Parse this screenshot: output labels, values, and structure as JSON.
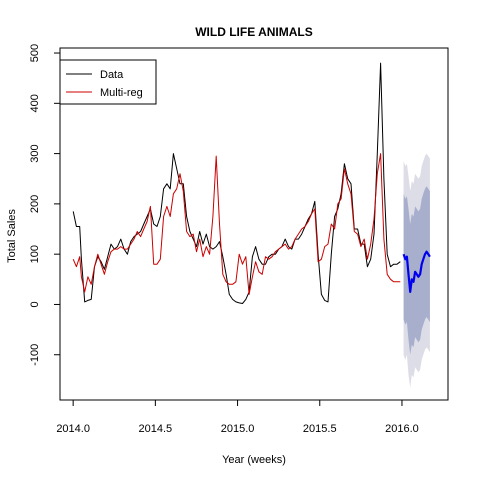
{
  "chart_data": {
    "type": "line",
    "title": "WILD LIFE ANIMALS",
    "xlabel": "Year (weeks)",
    "ylabel": "Total Sales",
    "xlim": [
      2013.92,
      2016.28
    ],
    "ylim": [
      -190,
      510
    ],
    "x_ticks": [
      2014.0,
      2014.5,
      2015.0,
      2015.5,
      2016.0
    ],
    "x_tick_labels": [
      "2014.0",
      "2014.5",
      "2015.0",
      "2015.5",
      "2016.0"
    ],
    "y_ticks": [
      -100,
      0,
      100,
      200,
      300,
      400,
      500
    ],
    "y_tick_labels": [
      "-100",
      "0",
      "100",
      "200",
      "300",
      "400",
      "500"
    ],
    "grid": false,
    "legend_position": "top-left",
    "legend": [
      {
        "label": "Data",
        "color": "#000000"
      },
      {
        "label": "Multi-reg",
        "color": "#cc0000"
      }
    ],
    "series": [
      {
        "name": "Data",
        "color": "#000000",
        "points": [
          [
            2014.0,
            185
          ],
          [
            2014.02,
            155
          ],
          [
            2014.04,
            155
          ],
          [
            2014.05,
            90
          ],
          [
            2014.07,
            5
          ],
          [
            2014.09,
            8
          ],
          [
            2014.11,
            10
          ],
          [
            2014.13,
            75
          ],
          [
            2014.15,
            95
          ],
          [
            2014.17,
            85
          ],
          [
            2014.19,
            70
          ],
          [
            2014.21,
            95
          ],
          [
            2014.23,
            120
          ],
          [
            2014.25,
            110
          ],
          [
            2014.27,
            115
          ],
          [
            2014.29,
            130
          ],
          [
            2014.31,
            110
          ],
          [
            2014.33,
            100
          ],
          [
            2014.35,
            125
          ],
          [
            2014.37,
            135
          ],
          [
            2014.39,
            140
          ],
          [
            2014.41,
            145
          ],
          [
            2014.43,
            160
          ],
          [
            2014.45,
            175
          ],
          [
            2014.47,
            190
          ],
          [
            2014.49,
            160
          ],
          [
            2014.51,
            155
          ],
          [
            2014.53,
            175
          ],
          [
            2014.55,
            230
          ],
          [
            2014.57,
            240
          ],
          [
            2014.59,
            230
          ],
          [
            2014.61,
            300
          ],
          [
            2014.63,
            270
          ],
          [
            2014.65,
            240
          ],
          [
            2014.67,
            240
          ],
          [
            2014.69,
            175
          ],
          [
            2014.71,
            145
          ],
          [
            2014.73,
            130
          ],
          [
            2014.75,
            115
          ],
          [
            2014.77,
            145
          ],
          [
            2014.79,
            120
          ],
          [
            2014.81,
            140
          ],
          [
            2014.83,
            115
          ],
          [
            2014.85,
            110
          ],
          [
            2014.87,
            115
          ],
          [
            2014.89,
            125
          ],
          [
            2014.91,
            95
          ],
          [
            2014.93,
            60
          ],
          [
            2014.95,
            20
          ],
          [
            2014.97,
            10
          ],
          [
            2014.99,
            5
          ],
          [
            2015.01,
            3
          ],
          [
            2015.03,
            2
          ],
          [
            2015.05,
            10
          ],
          [
            2015.07,
            25
          ],
          [
            2015.09,
            95
          ],
          [
            2015.11,
            115
          ],
          [
            2015.13,
            90
          ],
          [
            2015.15,
            80
          ],
          [
            2015.17,
            80
          ],
          [
            2015.19,
            95
          ],
          [
            2015.21,
            100
          ],
          [
            2015.23,
            100
          ],
          [
            2015.25,
            110
          ],
          [
            2015.27,
            115
          ],
          [
            2015.29,
            130
          ],
          [
            2015.31,
            115
          ],
          [
            2015.33,
            110
          ],
          [
            2015.35,
            130
          ],
          [
            2015.37,
            130
          ],
          [
            2015.39,
            140
          ],
          [
            2015.41,
            155
          ],
          [
            2015.43,
            170
          ],
          [
            2015.45,
            180
          ],
          [
            2015.47,
            205
          ],
          [
            2015.49,
            100
          ],
          [
            2015.51,
            20
          ],
          [
            2015.53,
            8
          ],
          [
            2015.55,
            5
          ],
          [
            2015.57,
            100
          ],
          [
            2015.59,
            175
          ],
          [
            2015.61,
            190
          ],
          [
            2015.63,
            220
          ],
          [
            2015.65,
            280
          ],
          [
            2015.67,
            250
          ],
          [
            2015.69,
            240
          ],
          [
            2015.71,
            150
          ],
          [
            2015.73,
            150
          ],
          [
            2015.75,
            120
          ],
          [
            2015.77,
            120
          ],
          [
            2015.79,
            75
          ],
          [
            2015.81,
            90
          ],
          [
            2015.83,
            140
          ],
          [
            2015.85,
            300
          ],
          [
            2015.87,
            480
          ],
          [
            2015.89,
            250
          ],
          [
            2015.91,
            100
          ],
          [
            2015.93,
            75
          ],
          [
            2015.95,
            80
          ],
          [
            2015.97,
            80
          ],
          [
            2015.99,
            85
          ]
        ]
      },
      {
        "name": "Multi-reg",
        "color": "#cc0000",
        "points": [
          [
            2014.0,
            90
          ],
          [
            2014.02,
            75
          ],
          [
            2014.04,
            95
          ],
          [
            2014.05,
            55
          ],
          [
            2014.07,
            25
          ],
          [
            2014.09,
            55
          ],
          [
            2014.11,
            40
          ],
          [
            2014.13,
            75
          ],
          [
            2014.15,
            100
          ],
          [
            2014.17,
            80
          ],
          [
            2014.19,
            60
          ],
          [
            2014.21,
            85
          ],
          [
            2014.23,
            105
          ],
          [
            2014.25,
            110
          ],
          [
            2014.27,
            110
          ],
          [
            2014.29,
            115
          ],
          [
            2014.31,
            110
          ],
          [
            2014.33,
            110
          ],
          [
            2014.35,
            120
          ],
          [
            2014.37,
            130
          ],
          [
            2014.39,
            145
          ],
          [
            2014.41,
            135
          ],
          [
            2014.43,
            150
          ],
          [
            2014.45,
            165
          ],
          [
            2014.47,
            195
          ],
          [
            2014.49,
            80
          ],
          [
            2014.51,
            80
          ],
          [
            2014.53,
            90
          ],
          [
            2014.55,
            175
          ],
          [
            2014.57,
            195
          ],
          [
            2014.59,
            175
          ],
          [
            2014.61,
            220
          ],
          [
            2014.63,
            230
          ],
          [
            2014.65,
            260
          ],
          [
            2014.67,
            225
          ],
          [
            2014.69,
            145
          ],
          [
            2014.71,
            135
          ],
          [
            2014.73,
            140
          ],
          [
            2014.75,
            105
          ],
          [
            2014.77,
            130
          ],
          [
            2014.79,
            95
          ],
          [
            2014.81,
            115
          ],
          [
            2014.83,
            100
          ],
          [
            2014.85,
            175
          ],
          [
            2014.87,
            295
          ],
          [
            2014.89,
            160
          ],
          [
            2014.91,
            60
          ],
          [
            2014.93,
            45
          ],
          [
            2014.95,
            40
          ],
          [
            2014.97,
            40
          ],
          [
            2014.99,
            45
          ],
          [
            2015.01,
            100
          ],
          [
            2015.03,
            80
          ],
          [
            2015.05,
            95
          ],
          [
            2015.07,
            20
          ],
          [
            2015.09,
            55
          ],
          [
            2015.11,
            85
          ],
          [
            2015.13,
            65
          ],
          [
            2015.15,
            60
          ],
          [
            2015.17,
            95
          ],
          [
            2015.19,
            90
          ],
          [
            2015.21,
            95
          ],
          [
            2015.23,
            105
          ],
          [
            2015.25,
            110
          ],
          [
            2015.27,
            115
          ],
          [
            2015.29,
            120
          ],
          [
            2015.31,
            110
          ],
          [
            2015.33,
            115
          ],
          [
            2015.35,
            130
          ],
          [
            2015.37,
            140
          ],
          [
            2015.39,
            150
          ],
          [
            2015.41,
            155
          ],
          [
            2015.43,
            165
          ],
          [
            2015.45,
            180
          ],
          [
            2015.47,
            190
          ],
          [
            2015.49,
            85
          ],
          [
            2015.51,
            90
          ],
          [
            2015.53,
            115
          ],
          [
            2015.55,
            120
          ],
          [
            2015.57,
            160
          ],
          [
            2015.59,
            150
          ],
          [
            2015.61,
            200
          ],
          [
            2015.63,
            210
          ],
          [
            2015.65,
            270
          ],
          [
            2015.67,
            240
          ],
          [
            2015.69,
            220
          ],
          [
            2015.71,
            145
          ],
          [
            2015.73,
            140
          ],
          [
            2015.75,
            115
          ],
          [
            2015.77,
            130
          ],
          [
            2015.79,
            90
          ],
          [
            2015.81,
            120
          ],
          [
            2015.83,
            170
          ],
          [
            2015.85,
            260
          ],
          [
            2015.87,
            300
          ],
          [
            2015.89,
            130
          ],
          [
            2015.91,
            60
          ],
          [
            2015.93,
            50
          ],
          [
            2015.95,
            45
          ],
          [
            2015.97,
            45
          ],
          [
            2015.99,
            45
          ]
        ]
      },
      {
        "color": "#0000ee",
        "points": [
          [
            2016.01,
            100
          ],
          [
            2016.02,
            90
          ],
          [
            2016.03,
            95
          ],
          [
            2016.04,
            60
          ],
          [
            2016.05,
            25
          ],
          [
            2016.06,
            50
          ],
          [
            2016.07,
            45
          ],
          [
            2016.08,
            65
          ],
          [
            2016.09,
            60
          ],
          [
            2016.1,
            55
          ],
          [
            2016.11,
            60
          ],
          [
            2016.12,
            80
          ],
          [
            2016.13,
            90
          ],
          [
            2016.14,
            100
          ],
          [
            2016.15,
            105
          ],
          [
            2016.16,
            100
          ],
          [
            2016.17,
            95
          ]
        ]
      }
    ],
    "forecast_interval": {
      "x": [
        2016.01,
        2016.02,
        2016.03,
        2016.04,
        2016.05,
        2016.06,
        2016.07,
        2016.08,
        2016.09,
        2016.1,
        2016.11,
        2016.12,
        2016.13,
        2016.14,
        2016.15,
        2016.16,
        2016.17
      ],
      "lo95": [
        -100,
        -110,
        -100,
        -140,
        -165,
        -140,
        -145,
        -125,
        -130,
        -135,
        -130,
        -110,
        -100,
        -90,
        -85,
        -90,
        -95
      ],
      "lo80": [
        -30,
        -40,
        -35,
        -70,
        -100,
        -80,
        -85,
        -65,
        -70,
        -75,
        -70,
        -50,
        -40,
        -30,
        -25,
        -30,
        -35
      ],
      "hi80": [
        220,
        210,
        215,
        190,
        160,
        180,
        175,
        195,
        190,
        185,
        190,
        210,
        220,
        230,
        235,
        230,
        225
      ],
      "hi95": [
        285,
        275,
        280,
        255,
        225,
        245,
        240,
        260,
        255,
        250,
        255,
        275,
        285,
        295,
        300,
        295,
        290
      ],
      "color95": "#dcdde6",
      "color80": "#a8afcc"
    }
  }
}
